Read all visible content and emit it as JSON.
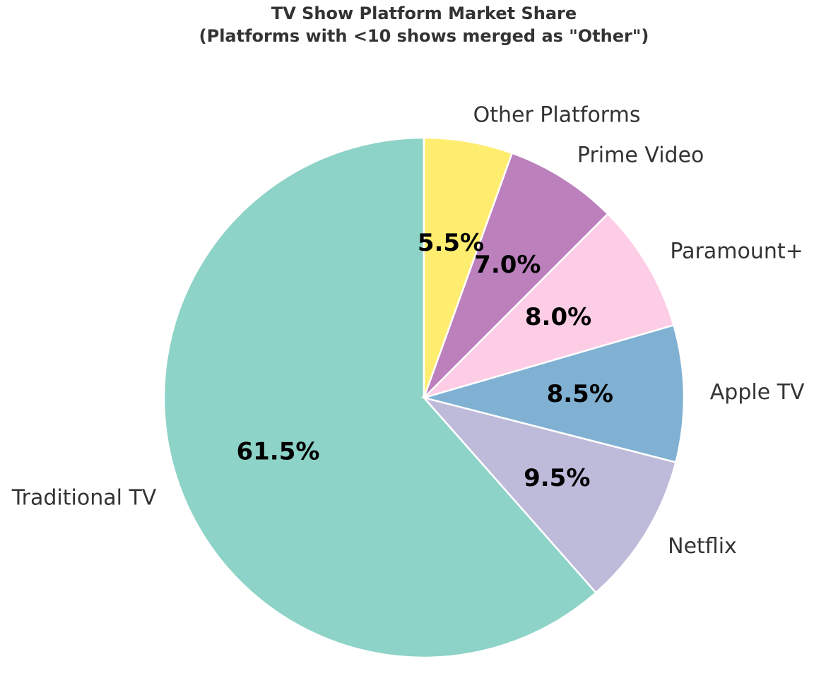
{
  "chart_data": {
    "type": "pie",
    "title": "TV Show Platform Market Share",
    "subtitle": "(Platforms with <10 shows merged as \"Other\")",
    "categories": [
      "Traditional TV",
      "Netflix",
      "Apple TV",
      "Paramount+",
      "Prime Video",
      "Other Platforms"
    ],
    "values": [
      61.5,
      9.5,
      8.5,
      8.0,
      7.0,
      5.5
    ],
    "value_labels": [
      "61.5%",
      "9.5%",
      "8.5%",
      "8.0%",
      "7.0%",
      "5.5%"
    ],
    "colors": [
      "#8dd3c7",
      "#bebada",
      "#80b1d3",
      "#fccde5",
      "#bc80bd",
      "#ffed6f"
    ]
  }
}
